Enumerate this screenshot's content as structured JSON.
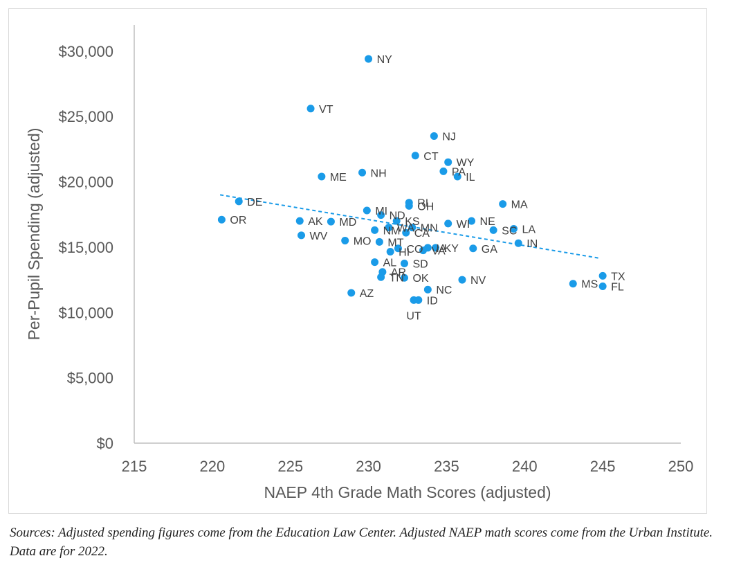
{
  "chart_data": {
    "type": "scatter",
    "title": "",
    "xlabel": "NAEP 4th Grade Math Scores (adjusted)",
    "ylabel": "Per-Pupil Spending (adjusted)",
    "xlim": [
      215,
      250
    ],
    "ylim": [
      0,
      32000
    ],
    "xticks": [
      215,
      220,
      225,
      230,
      235,
      240,
      245,
      250
    ],
    "yticks": [
      {
        "value": 0,
        "label": "$0"
      },
      {
        "value": 5000,
        "label": "$5,000"
      },
      {
        "value": 10000,
        "label": "$10,000"
      },
      {
        "value": 15000,
        "label": "$15,000"
      },
      {
        "value": 20000,
        "label": "$20,000"
      },
      {
        "value": 25000,
        "label": "$25,000"
      },
      {
        "value": 30000,
        "label": "$30,000"
      }
    ],
    "point_color": "#1a9be8",
    "trendline": {
      "x": [
        220.5,
        244.8
      ],
      "y": [
        19000,
        14150
      ],
      "color": "#1a9be8",
      "style": "dashed"
    },
    "points": [
      {
        "label": "NY",
        "x": 230.0,
        "y": 29400
      },
      {
        "label": "VT",
        "x": 226.3,
        "y": 25600
      },
      {
        "label": "NJ",
        "x": 234.2,
        "y": 23500
      },
      {
        "label": "CT",
        "x": 233.0,
        "y": 22000
      },
      {
        "label": "WY",
        "x": 235.1,
        "y": 21500
      },
      {
        "label": "PA",
        "x": 234.8,
        "y": 20800
      },
      {
        "label": "IL",
        "x": 235.7,
        "y": 20400
      },
      {
        "label": "NH",
        "x": 229.6,
        "y": 20700
      },
      {
        "label": "ME",
        "x": 227.0,
        "y": 20400
      },
      {
        "label": "DE",
        "x": 221.7,
        "y": 18500
      },
      {
        "label": "OR",
        "x": 220.6,
        "y": 17100
      },
      {
        "label": "RI",
        "x": 232.6,
        "y": 18400
      },
      {
        "label": "OH",
        "x": 232.6,
        "y": 18150
      },
      {
        "label": "MA",
        "x": 238.6,
        "y": 18300
      },
      {
        "label": "MI",
        "x": 229.9,
        "y": 17800
      },
      {
        "label": "ND",
        "x": 230.8,
        "y": 17450
      },
      {
        "label": "KS",
        "x": 231.8,
        "y": 17000
      },
      {
        "label": "AK",
        "x": 225.6,
        "y": 17000
      },
      {
        "label": "MD",
        "x": 227.6,
        "y": 16950
      },
      {
        "label": "WI",
        "x": 235.1,
        "y": 16800
      },
      {
        "label": "NE",
        "x": 236.6,
        "y": 17000
      },
      {
        "label": "WA",
        "x": 231.3,
        "y": 16500
      },
      {
        "label": "MN",
        "x": 232.8,
        "y": 16500
      },
      {
        "label": "NM",
        "x": 230.4,
        "y": 16300
      },
      {
        "label": "CA",
        "x": 232.4,
        "y": 16100
      },
      {
        "label": "SC",
        "x": 238.0,
        "y": 16300
      },
      {
        "label": "LA",
        "x": 239.3,
        "y": 16400
      },
      {
        "label": "WV",
        "x": 225.7,
        "y": 15900
      },
      {
        "label": "MO",
        "x": 228.5,
        "y": 15500
      },
      {
        "label": "MT",
        "x": 230.7,
        "y": 15400
      },
      {
        "label": "IN",
        "x": 239.6,
        "y": 15300
      },
      {
        "label": "CO",
        "x": 231.9,
        "y": 14900
      },
      {
        "label": "IA",
        "x": 233.8,
        "y": 14950
      },
      {
        "label": "VA",
        "x": 233.5,
        "y": 14750
      },
      {
        "label": "KY",
        "x": 234.3,
        "y": 14950
      },
      {
        "label": "GA",
        "x": 236.7,
        "y": 14900
      },
      {
        "label": "HI",
        "x": 231.4,
        "y": 14650
      },
      {
        "label": "AL",
        "x": 230.4,
        "y": 13850
      },
      {
        "label": "SD",
        "x": 232.3,
        "y": 13750
      },
      {
        "label": "AR",
        "x": 230.9,
        "y": 13100
      },
      {
        "label": "TN",
        "x": 230.8,
        "y": 12700
      },
      {
        "label": "OK",
        "x": 232.3,
        "y": 12650
      },
      {
        "label": "NV",
        "x": 236.0,
        "y": 12500
      },
      {
        "label": "TX",
        "x": 245.0,
        "y": 12800
      },
      {
        "label": "MS",
        "x": 243.1,
        "y": 12200
      },
      {
        "label": "FL",
        "x": 245.0,
        "y": 12000
      },
      {
        "label": "NC",
        "x": 233.8,
        "y": 11750
      },
      {
        "label": "AZ",
        "x": 228.9,
        "y": 11500
      },
      {
        "label": "ID",
        "x": 233.2,
        "y": 10950
      },
      {
        "label": "UT",
        "x": 232.9,
        "y": 10950
      }
    ]
  },
  "caption": "Sources: Adjusted spending figures come from the Education Law Center. Adjusted NAEP math scores come from the Urban Institute. Data are for 2022."
}
